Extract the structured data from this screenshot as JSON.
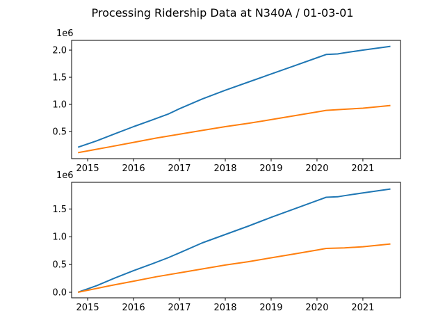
{
  "figure": {
    "title": "Processing Ridership Data at N340A / 01-03-01"
  },
  "chart_data": [
    {
      "type": "line",
      "title": "",
      "xlabel": "",
      "ylabel": "",
      "offset_label": "1e6",
      "xlim": [
        2014.65,
        2021.82
      ],
      "ylim": [
        0.0,
        2.18
      ],
      "xticks": [
        2015,
        2016,
        2017,
        2018,
        2019,
        2020,
        2021
      ],
      "xtick_labels": [
        "2015",
        "2016",
        "2017",
        "2018",
        "2019",
        "2020",
        "2021"
      ],
      "yticks": [
        0.5,
        1.0,
        1.5,
        2.0
      ],
      "ytick_labels": [
        "0.5",
        "1.0",
        "1.5",
        "2.0"
      ],
      "grid": false,
      "series": [
        {
          "color": "#1f77b4",
          "x": [
            2014.79,
            2015.2,
            2015.6,
            2016.0,
            2016.4,
            2016.75,
            2017.0,
            2017.5,
            2018.0,
            2018.5,
            2019.0,
            2019.5,
            2020.0,
            2020.2,
            2020.45,
            2020.6,
            2021.0,
            2021.6
          ],
          "y": [
            0.21,
            0.33,
            0.46,
            0.59,
            0.71,
            0.82,
            0.92,
            1.1,
            1.26,
            1.41,
            1.56,
            1.71,
            1.86,
            1.92,
            1.93,
            1.95,
            2.0,
            2.07
          ]
        },
        {
          "color": "#ff7f0e",
          "x": [
            2014.79,
            2015.5,
            2016.0,
            2016.5,
            2017.0,
            2017.5,
            2018.0,
            2018.5,
            2019.0,
            2019.5,
            2020.0,
            2020.2,
            2020.6,
            2021.0,
            2021.6
          ],
          "y": [
            0.11,
            0.22,
            0.3,
            0.38,
            0.45,
            0.52,
            0.59,
            0.65,
            0.72,
            0.79,
            0.86,
            0.89,
            0.91,
            0.93,
            0.98
          ]
        }
      ]
    },
    {
      "type": "line",
      "title": "",
      "xlabel": "",
      "ylabel": "",
      "offset_label": "1e6",
      "xlim": [
        2014.65,
        2021.82
      ],
      "ylim": [
        -0.1,
        1.98
      ],
      "xticks": [
        2015,
        2016,
        2017,
        2018,
        2019,
        2020,
        2021
      ],
      "xtick_labels": [
        "2015",
        "2016",
        "2017",
        "2018",
        "2019",
        "2020",
        "2021"
      ],
      "yticks": [
        0.0,
        0.5,
        1.0,
        1.5
      ],
      "ytick_labels": [
        "0.0",
        "0.5",
        "1.0",
        "1.5"
      ],
      "grid": false,
      "series": [
        {
          "color": "#1f77b4",
          "x": [
            2014.79,
            2015.2,
            2015.6,
            2016.0,
            2016.4,
            2016.75,
            2017.0,
            2017.5,
            2018.0,
            2018.5,
            2019.0,
            2019.5,
            2020.0,
            2020.2,
            2020.45,
            2020.6,
            2021.0,
            2021.6
          ],
          "y": [
            0.0,
            0.12,
            0.26,
            0.39,
            0.51,
            0.62,
            0.71,
            0.89,
            1.04,
            1.19,
            1.35,
            1.5,
            1.65,
            1.71,
            1.72,
            1.74,
            1.79,
            1.86
          ]
        },
        {
          "color": "#ff7f0e",
          "x": [
            2014.79,
            2015.5,
            2016.0,
            2016.5,
            2017.0,
            2017.5,
            2018.0,
            2018.5,
            2019.0,
            2019.5,
            2020.0,
            2020.2,
            2020.6,
            2021.0,
            2021.6
          ],
          "y": [
            0.0,
            0.12,
            0.2,
            0.28,
            0.35,
            0.42,
            0.49,
            0.55,
            0.62,
            0.69,
            0.76,
            0.79,
            0.8,
            0.82,
            0.87
          ]
        }
      ]
    }
  ]
}
